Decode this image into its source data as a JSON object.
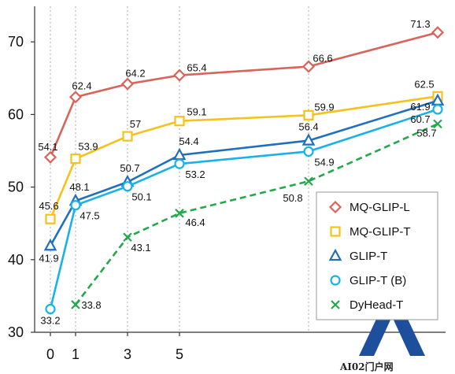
{
  "chart_data": {
    "type": "line",
    "title": "",
    "xlabel": "",
    "ylabel": "",
    "x": [
      0,
      1,
      3,
      5,
      10,
      15
    ],
    "x_tick_labels": [
      "0",
      "1",
      "3",
      "5"
    ],
    "y_ticks": [
      30,
      40,
      50,
      60,
      70
    ],
    "ylim": [
      30,
      75
    ],
    "grid": "vertical dotted lines at x = 0, 1, 3, 5 and 10",
    "legend_position": "bottom-right",
    "series": [
      {
        "name": "MQ-GLIP-L",
        "color": "#d9645a",
        "marker": "diamond",
        "line": "solid",
        "x": [
          0,
          1,
          3,
          5,
          10,
          15
        ],
        "values": [
          54.1,
          62.4,
          64.2,
          65.4,
          66.6,
          71.3
        ],
        "labels": [
          "54.1",
          "62.4",
          "64.2",
          "65.4",
          "66.6",
          "71.3"
        ]
      },
      {
        "name": "MQ-GLIP-T",
        "color": "#f5c11b",
        "marker": "square",
        "line": "solid",
        "x": [
          0,
          1,
          3,
          5,
          10,
          15
        ],
        "values": [
          45.6,
          53.9,
          57,
          59.1,
          59.9,
          62.5
        ],
        "labels": [
          "45.6",
          "53.9",
          "57",
          "59.1",
          "59.9",
          "62.5"
        ]
      },
      {
        "name": "GLIP-T",
        "color": "#1f6fbd",
        "marker": "triangle",
        "line": "solid",
        "x": [
          0,
          1,
          3,
          5,
          10,
          15
        ],
        "values": [
          41.9,
          48.1,
          50.7,
          54.4,
          56.4,
          61.9
        ],
        "labels": [
          "41.9",
          "48.1",
          "50.7",
          "54.4",
          "56.4",
          "61.9"
        ]
      },
      {
        "name": "GLIP-T (B)",
        "color": "#19b2e6",
        "marker": "circle",
        "line": "solid",
        "x": [
          0,
          1,
          3,
          5,
          10,
          15
        ],
        "values": [
          33.2,
          47.5,
          50.1,
          53.2,
          54.9,
          60.7
        ],
        "labels": [
          "33.2",
          "47.5",
          "50.1",
          "53.2",
          "54.9",
          "60.7"
        ]
      },
      {
        "name": "DyHead-T",
        "color": "#23a84b",
        "marker": "x",
        "line": "dashed",
        "x": [
          1,
          3,
          5,
          10,
          15
        ],
        "values": [
          33.8,
          43.1,
          46.4,
          50.8,
          58.7
        ],
        "labels": [
          "33.8",
          "43.1",
          "46.4",
          "50.8",
          "58.7"
        ]
      }
    ]
  },
  "watermark": {
    "text": "AI02门户网"
  }
}
